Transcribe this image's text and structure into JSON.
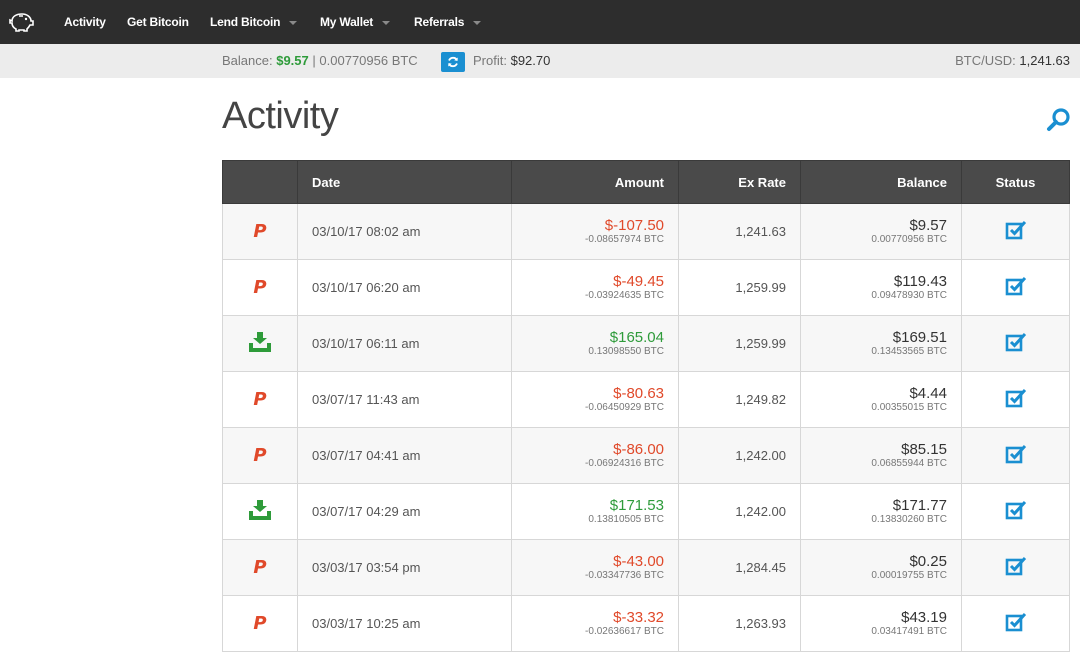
{
  "nav": {
    "items": [
      {
        "label": "Activity",
        "dropdown": false
      },
      {
        "label": "Get Bitcoin",
        "dropdown": false
      },
      {
        "label": "Lend Bitcoin",
        "dropdown": true
      },
      {
        "label": "My Wallet",
        "dropdown": true
      },
      {
        "label": "Referrals",
        "dropdown": true
      }
    ],
    "logo_icon": "piggy-bank-icon"
  },
  "subbar": {
    "balance_label": "Balance:",
    "balance_usd": "$9.57",
    "separator": "|",
    "balance_btc": "0.00770956 BTC",
    "profit_label": "Profit:",
    "profit_value": "$92.70",
    "rate_label": "BTC/USD:",
    "rate_value": "1,241.63"
  },
  "page": {
    "title": "Activity"
  },
  "table": {
    "headers": {
      "icon": "",
      "date": "Date",
      "amount": "Amount",
      "rate": "Ex Rate",
      "balance": "Balance",
      "status": "Status"
    },
    "rows": [
      {
        "type": "paypal",
        "date": "03/10/17 08:02 am",
        "amount": "$-107.50",
        "amount_btc": "-0.08657974 BTC",
        "rate": "1,241.63",
        "balance": "$9.57",
        "balance_btc": "0.00770956 BTC"
      },
      {
        "type": "paypal",
        "date": "03/10/17 06:20 am",
        "amount": "$-49.45",
        "amount_btc": "-0.03924635 BTC",
        "rate": "1,259.99",
        "balance": "$119.43",
        "balance_btc": "0.09478930 BTC"
      },
      {
        "type": "deposit",
        "date": "03/10/17 06:11 am",
        "amount": "$165.04",
        "amount_btc": "0.13098550 BTC",
        "rate": "1,259.99",
        "balance": "$169.51",
        "balance_btc": "0.13453565 BTC"
      },
      {
        "type": "paypal",
        "date": "03/07/17 11:43 am",
        "amount": "$-80.63",
        "amount_btc": "-0.06450929 BTC",
        "rate": "1,249.82",
        "balance": "$4.44",
        "balance_btc": "0.00355015 BTC"
      },
      {
        "type": "paypal",
        "date": "03/07/17 04:41 am",
        "amount": "$-86.00",
        "amount_btc": "-0.06924316 BTC",
        "rate": "1,242.00",
        "balance": "$85.15",
        "balance_btc": "0.06855944 BTC"
      },
      {
        "type": "deposit",
        "date": "03/07/17 04:29 am",
        "amount": "$171.53",
        "amount_btc": "0.13810505 BTC",
        "rate": "1,242.00",
        "balance": "$171.77",
        "balance_btc": "0.13830260 BTC"
      },
      {
        "type": "paypal",
        "date": "03/03/17 03:54 pm",
        "amount": "$-43.00",
        "amount_btc": "-0.03347736 BTC",
        "rate": "1,284.45",
        "balance": "$0.25",
        "balance_btc": "0.00019755 BTC"
      },
      {
        "type": "paypal",
        "date": "03/03/17 10:25 am",
        "amount": "$-33.32",
        "amount_btc": "-0.02636617 BTC",
        "rate": "1,263.93",
        "balance": "$43.19",
        "balance_btc": "0.03417491 BTC"
      }
    ]
  },
  "colors": {
    "negative": "#e0492a",
    "positive": "#2e9b3a",
    "status": "#1a8fd1",
    "header": "#4a4a4a",
    "navbar": "#2d2d2d"
  }
}
